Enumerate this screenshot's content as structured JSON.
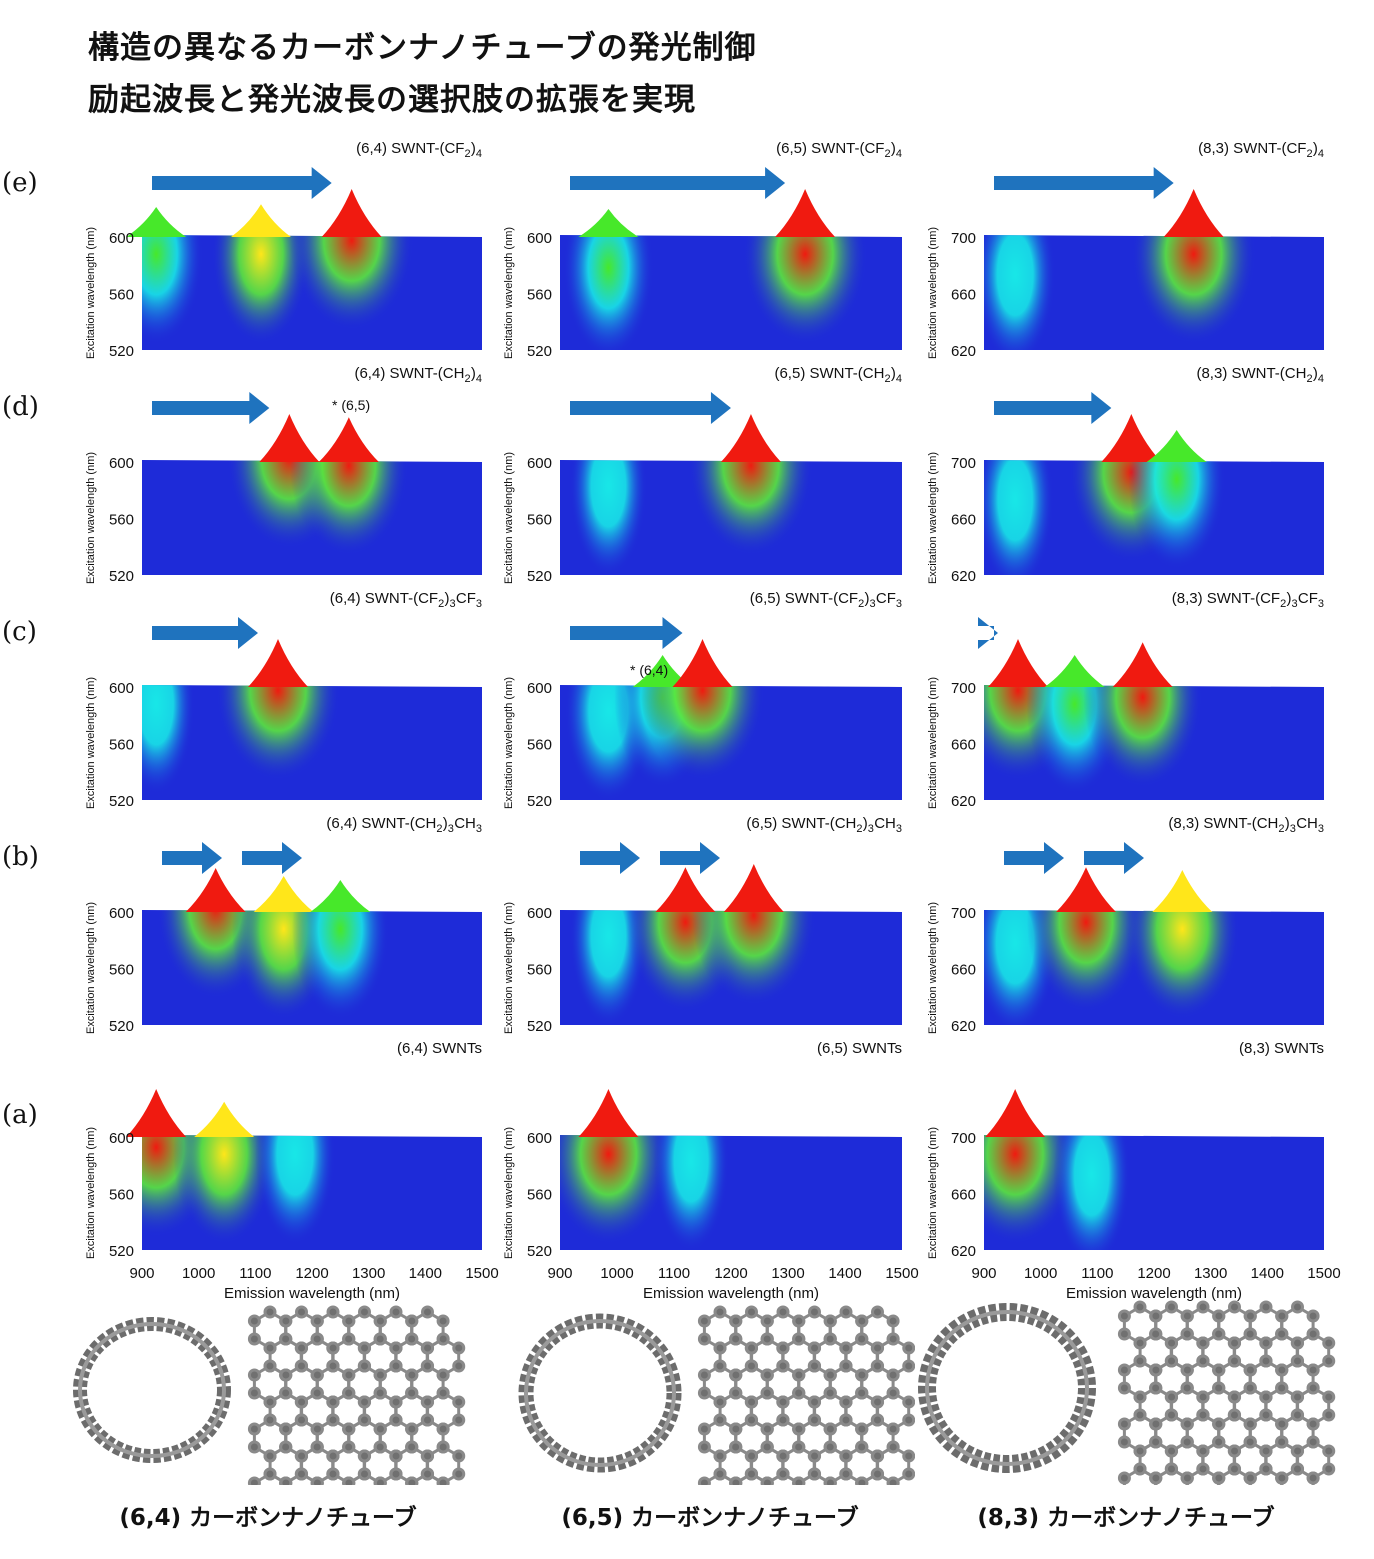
{
  "title": {
    "line1": "構造の異なるカーボンナノチューブの発光制御",
    "line2": "励起波長と発光波長の選択肢の拡張を実現"
  },
  "row_labels": [
    "(e)",
    "(d)",
    "(c)",
    "(b)",
    "(a)"
  ],
  "axis": {
    "ylabel": "Excitation wavelength (nm)",
    "xlabel": "Emission wavelength (nm)",
    "x_ticks": [
      "900",
      "1000",
      "1100",
      "1200",
      "1300",
      "1400",
      "1500"
    ]
  },
  "columns": [
    {
      "tube": "(6,4)",
      "y_ticks": [
        "520",
        "560",
        "600"
      ],
      "ylim": [
        520,
        620
      ],
      "caption": "(6,4) カーボンナノチューブ"
    },
    {
      "tube": "(6,5)",
      "y_ticks": [
        "520",
        "560",
        "600"
      ],
      "ylim": [
        520,
        620
      ],
      "caption": "(6,5) カーボンナノチューブ"
    },
    {
      "tube": "(8,3)",
      "y_ticks": [
        "620",
        "660",
        "700"
      ],
      "ylim": [
        620,
        720
      ],
      "caption": "(8,3) カーボンナノチューブ"
    }
  ],
  "chart_data": [
    {
      "type": "heatmap",
      "row": "e",
      "col": 0,
      "label_main": "(6,4) SWNT-(CF",
      "label_sub": "2",
      "label_tail": ")",
      "label_sub2": "4",
      "label_tail2": "",
      "peaks": [
        {
          "x": 925,
          "y": 590,
          "v": 0.55
        },
        {
          "x": 1110,
          "y": 590,
          "v": 0.62
        },
        {
          "x": 1270,
          "y": 600,
          "v": 1.0
        }
      ]
    },
    {
      "type": "heatmap",
      "row": "e",
      "col": 1,
      "label_main": "(6,5) SWNT-(CF",
      "label_sub": "2",
      "label_tail": ")",
      "label_sub2": "4",
      "label_tail2": "",
      "peaks": [
        {
          "x": 985,
          "y": 580,
          "v": 0.5
        },
        {
          "x": 1330,
          "y": 590,
          "v": 1.0
        }
      ]
    },
    {
      "type": "heatmap",
      "row": "e",
      "col": 2,
      "label_main": "(8,3) SWNT-(CF",
      "label_sub": "2",
      "label_tail": ")",
      "label_sub2": "4",
      "label_tail2": "",
      "peaks": [
        {
          "x": 955,
          "y": 675,
          "v": 0.35
        },
        {
          "x": 1270,
          "y": 690,
          "v": 1.0
        }
      ]
    },
    {
      "type": "heatmap",
      "row": "d",
      "col": 0,
      "label_main": "(6,4) SWNT-(CH",
      "label_sub": "2",
      "label_tail": ")",
      "label_sub2": "4",
      "label_tail2": "",
      "note": "* (6,5)",
      "peaks": [
        {
          "x": 1160,
          "y": 605,
          "v": 1.0
        },
        {
          "x": 1265,
          "y": 600,
          "v": 0.92
        }
      ]
    },
    {
      "type": "heatmap",
      "row": "d",
      "col": 1,
      "label_main": "(6,5) SWNT-(CH",
      "label_sub": "2",
      "label_tail": ")",
      "label_sub2": "4",
      "label_tail2": "",
      "peaks": [
        {
          "x": 985,
          "y": 585,
          "v": 0.3
        },
        {
          "x": 1235,
          "y": 600,
          "v": 1.0
        }
      ]
    },
    {
      "type": "heatmap",
      "row": "d",
      "col": 2,
      "label_main": "(8,3) SWNT-(CH",
      "label_sub": "2",
      "label_tail": ")",
      "label_sub2": "4",
      "label_tail2": "",
      "peaks": [
        {
          "x": 955,
          "y": 675,
          "v": 0.3
        },
        {
          "x": 1160,
          "y": 695,
          "v": 1.0
        },
        {
          "x": 1240,
          "y": 690,
          "v": 0.6
        }
      ]
    },
    {
      "type": "heatmap",
      "row": "c",
      "col": 0,
      "label_main": "(6,4) SWNT-(CF",
      "label_sub": "2",
      "label_tail": ")",
      "label_sub2": "3",
      "label_tail2": "CF",
      "label_sub3": "3",
      "peaks": [
        {
          "x": 925,
          "y": 590,
          "v": 0.3
        },
        {
          "x": 1140,
          "y": 600,
          "v": 1.0
        }
      ]
    },
    {
      "type": "heatmap",
      "row": "c",
      "col": 1,
      "label_main": "(6,5) SWNT-(CF",
      "label_sub": "2",
      "label_tail": ")",
      "label_sub2": "3",
      "label_tail2": "CF",
      "label_sub3": "3",
      "note": "* (6,4)",
      "peaks": [
        {
          "x": 985,
          "y": 585,
          "v": 0.45
        },
        {
          "x": 1080,
          "y": 595,
          "v": 0.6
        },
        {
          "x": 1150,
          "y": 600,
          "v": 1.0
        }
      ]
    },
    {
      "type": "heatmap",
      "row": "c",
      "col": 2,
      "label_main": "(8,3) SWNT-(CF",
      "label_sub": "2",
      "label_tail": ")",
      "label_sub2": "3",
      "label_tail2": "CF",
      "label_sub3": "3",
      "peaks": [
        {
          "x": 960,
          "y": 700,
          "v": 1.0
        },
        {
          "x": 1060,
          "y": 690,
          "v": 0.6
        },
        {
          "x": 1180,
          "y": 695,
          "v": 0.92
        }
      ]
    },
    {
      "type": "heatmap",
      "row": "b",
      "col": 0,
      "label_main": "(6,4) SWNT-(CH",
      "label_sub": "2",
      "label_tail": ")",
      "label_sub2": "3",
      "label_tail2": "CH",
      "label_sub3": "3",
      "peaks": [
        {
          "x": 1030,
          "y": 605,
          "v": 0.9
        },
        {
          "x": 1150,
          "y": 590,
          "v": 0.7
        },
        {
          "x": 1250,
          "y": 590,
          "v": 0.6
        }
      ]
    },
    {
      "type": "heatmap",
      "row": "b",
      "col": 1,
      "label_main": "(6,5) SWNT-(CH",
      "label_sub": "2",
      "label_tail": ")",
      "label_sub2": "3",
      "label_tail2": "CH",
      "label_sub3": "3",
      "peaks": [
        {
          "x": 985,
          "y": 585,
          "v": 0.3
        },
        {
          "x": 1120,
          "y": 595,
          "v": 0.92
        },
        {
          "x": 1240,
          "y": 600,
          "v": 1.0
        }
      ]
    },
    {
      "type": "heatmap",
      "row": "b",
      "col": 2,
      "label_main": "(8,3) SWNT-(CH",
      "label_sub": "2",
      "label_tail": ")",
      "label_sub2": "3",
      "label_tail2": "CH",
      "label_sub3": "3",
      "peaks": [
        {
          "x": 955,
          "y": 680,
          "v": 0.4
        },
        {
          "x": 1080,
          "y": 695,
          "v": 0.92
        },
        {
          "x": 1250,
          "y": 690,
          "v": 0.85
        }
      ]
    },
    {
      "type": "heatmap",
      "row": "a",
      "col": 0,
      "label_main": "(6,4) SWNTs",
      "peaks": [
        {
          "x": 925,
          "y": 595,
          "v": 1.0
        },
        {
          "x": 1045,
          "y": 590,
          "v": 0.68
        },
        {
          "x": 1170,
          "y": 590,
          "v": 0.35
        }
      ]
    },
    {
      "type": "heatmap",
      "row": "a",
      "col": 1,
      "label_main": "(6,5) SWNTs",
      "peaks": [
        {
          "x": 985,
          "y": 590,
          "v": 1.0
        },
        {
          "x": 1130,
          "y": 585,
          "v": 0.28
        }
      ]
    },
    {
      "type": "heatmap",
      "row": "a",
      "col": 2,
      "label_main": "(8,3) SWNTs",
      "peaks": [
        {
          "x": 955,
          "y": 690,
          "v": 1.0
        },
        {
          "x": 1090,
          "y": 675,
          "v": 0.3
        }
      ]
    }
  ],
  "colors": {
    "low": "#1e2bd8",
    "mid": "#18e7e7",
    "high": "#f01a10",
    "arrow": "#1f73be"
  }
}
